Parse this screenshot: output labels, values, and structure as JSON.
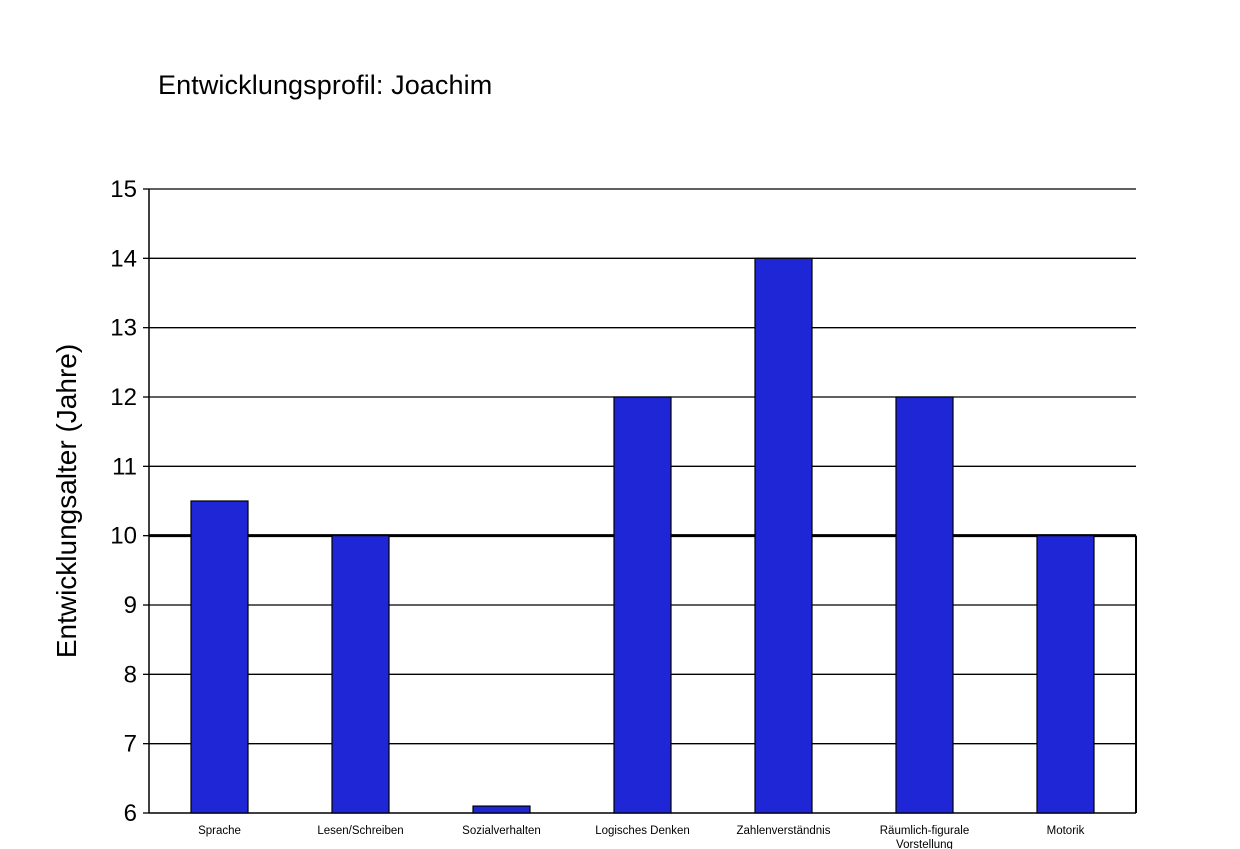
{
  "colors": {
    "bar": "#1f26d6",
    "bar_outline": "#000000",
    "grid": "#000000",
    "background": "#ffffff"
  },
  "chart_data": {
    "type": "bar",
    "title": "Entwicklungsprofil: Joachim",
    "xlabel": "",
    "ylabel": "Entwicklungsalter (Jahre)",
    "ylim": [
      6,
      15
    ],
    "yticks": [
      6,
      7,
      8,
      9,
      10,
      11,
      12,
      13,
      14,
      15
    ],
    "grid": true,
    "reference_line": 10,
    "categories": [
      "Sprache",
      "Lesen/Schreiben",
      "Sozialverhalten",
      "Logisches Denken",
      "Zahlenverständnis",
      "Räumlich-figurale Vorstellung",
      "Motorik"
    ],
    "values": [
      10.5,
      10,
      6.1,
      12,
      14,
      12,
      10
    ]
  }
}
